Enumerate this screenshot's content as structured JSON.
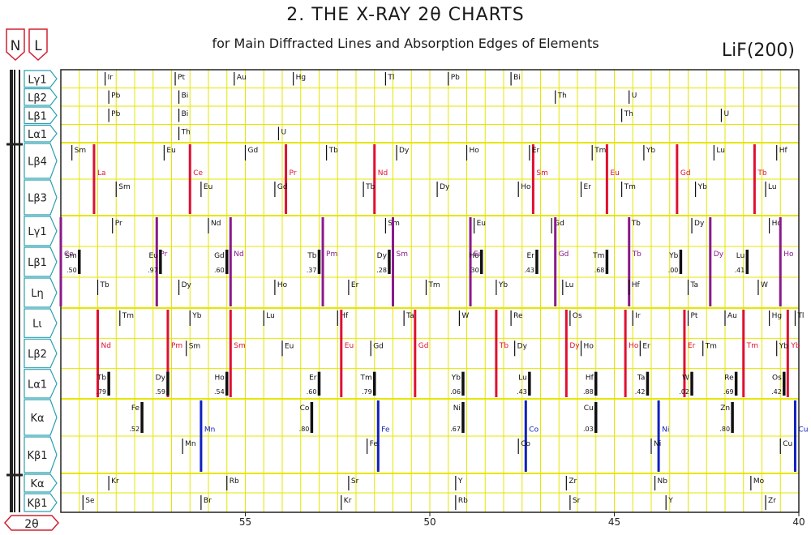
{
  "header": {
    "title": "2. THE X-RAY 2θ CHARTS",
    "subtitle": "for Main Diffracted Lines and Absorption Edges of Elements",
    "crystal": "LiF(200)",
    "badge_n": "N",
    "badge_l": "L",
    "axis_badge": "2θ"
  },
  "colors": {
    "grid": "#e6e600",
    "frame": "#222222",
    "label_border": "#2aa0b0",
    "badge": "#d12030",
    "red": "#e01030",
    "purple": "#8a1a8a",
    "blue": "#1020c0",
    "black": "#111111"
  },
  "chart_data": {
    "type": "table",
    "xlim": [
      60,
      40
    ],
    "xticks": [
      55,
      50,
      45,
      40
    ],
    "bands": [
      {
        "rows": [
          "Lγ1",
          "Lβ2",
          "Lβ1",
          "Lα1"
        ],
        "marks": [
          {
            "el": "Ir",
            "x": 58.8,
            "row": 0
          },
          {
            "el": "Pt",
            "x": 56.9,
            "row": 0
          },
          {
            "el": "Au",
            "x": 55.3,
            "row": 0
          },
          {
            "el": "Hg",
            "x": 53.7,
            "row": 0
          },
          {
            "el": "Tl",
            "x": 51.2,
            "row": 0
          },
          {
            "el": "Pb",
            "x": 49.5,
            "row": 0
          },
          {
            "el": "Bi",
            "x": 47.8,
            "row": 0
          },
          {
            "el": "Pb",
            "x": 58.7,
            "row": 1
          },
          {
            "el": "Bi",
            "x": 56.8,
            "row": 1
          },
          {
            "el": "Th",
            "x": 46.6,
            "row": 1
          },
          {
            "el": "U",
            "x": 44.6,
            "row": 1
          },
          {
            "el": "Pb",
            "x": 58.7,
            "row": 2
          },
          {
            "el": "Bi",
            "x": 56.8,
            "row": 2
          },
          {
            "el": "Th",
            "x": 44.8,
            "row": 2
          },
          {
            "el": "U",
            "x": 42.1,
            "row": 2
          },
          {
            "el": "Th",
            "x": 56.8,
            "row": 3
          },
          {
            "el": "U",
            "x": 54.1,
            "row": 3
          }
        ]
      },
      {
        "rows": [
          "Lβ4",
          "Lβ3"
        ],
        "marks": [
          {
            "el": "Sm",
            "x": 59.7,
            "row": 0
          },
          {
            "el": "La",
            "x": 59.1,
            "row": 0,
            "edge": "red"
          },
          {
            "el": "Eu",
            "x": 57.2,
            "row": 0
          },
          {
            "el": "Ce",
            "x": 56.5,
            "row": 0,
            "edge": "red"
          },
          {
            "el": "Gd",
            "x": 55.0,
            "row": 0
          },
          {
            "el": "Pr",
            "x": 53.9,
            "row": 0,
            "edge": "red"
          },
          {
            "el": "Tb",
            "x": 52.8,
            "row": 0
          },
          {
            "el": "Nd",
            "x": 51.5,
            "row": 0,
            "edge": "red"
          },
          {
            "el": "Dy",
            "x": 50.9,
            "row": 0
          },
          {
            "el": "Ho",
            "x": 49.0,
            "row": 0
          },
          {
            "el": "Sm",
            "x": 47.2,
            "row": 0,
            "edge": "red"
          },
          {
            "el": "Er",
            "x": 47.3,
            "row": 0
          },
          {
            "el": "Tm",
            "x": 45.6,
            "row": 0
          },
          {
            "el": "Eu",
            "x": 45.2,
            "row": 0,
            "edge": "red"
          },
          {
            "el": "Yb",
            "x": 44.2,
            "row": 0
          },
          {
            "el": "Gd",
            "x": 43.3,
            "row": 0,
            "edge": "red"
          },
          {
            "el": "Lu",
            "x": 42.3,
            "row": 0
          },
          {
            "el": "Tb",
            "x": 41.2,
            "row": 0,
            "edge": "red"
          },
          {
            "el": "Hf",
            "x": 40.6,
            "row": 0
          },
          {
            "el": "Sm",
            "x": 58.5,
            "row": 1
          },
          {
            "el": "Eu",
            "x": 56.2,
            "row": 1
          },
          {
            "el": "Gd",
            "x": 54.2,
            "row": 1
          },
          {
            "el": "Tb",
            "x": 51.8,
            "row": 1
          },
          {
            "el": "Dy",
            "x": 49.8,
            "row": 1
          },
          {
            "el": "Ho",
            "x": 47.6,
            "row": 1
          },
          {
            "el": "Er",
            "x": 45.9,
            "row": 1
          },
          {
            "el": "Tm",
            "x": 44.8,
            "row": 1
          },
          {
            "el": "Yb",
            "x": 42.8,
            "row": 1
          },
          {
            "el": "Lu",
            "x": 40.9,
            "row": 1
          }
        ]
      },
      {
        "rows": [
          "Lγ1",
          "Lβ1",
          "Lη"
        ],
        "marks": [
          {
            "el": "Ce",
            "x": 60.0,
            "row": 0,
            "edge": "purple"
          },
          {
            "el": "Pr",
            "x": 58.6,
            "row": 0
          },
          {
            "el": "Pr",
            "x": 57.4,
            "row": 0,
            "edge": "purple"
          },
          {
            "el": "Nd",
            "x": 56.0,
            "row": 0
          },
          {
            "el": "Nd",
            "x": 55.4,
            "row": 0,
            "edge": "purple"
          },
          {
            "el": "Pm",
            "x": 52.9,
            "row": 0,
            "edge": "purple"
          },
          {
            "el": "Sm",
            "x": 51.2,
            "row": 0
          },
          {
            "el": "Sm",
            "x": 51.0,
            "row": 0,
            "edge": "purple"
          },
          {
            "el": "Eu",
            "x": 48.8,
            "row": 0
          },
          {
            "el": "Eu",
            "x": 48.9,
            "row": 0,
            "edge": "purple"
          },
          {
            "el": "Gd",
            "x": 46.7,
            "row": 0
          },
          {
            "el": "Gd",
            "x": 46.6,
            "row": 0,
            "edge": "purple"
          },
          {
            "el": "Tb",
            "x": 44.6,
            "row": 0
          },
          {
            "el": "Tb",
            "x": 44.6,
            "row": 0,
            "edge": "purple"
          },
          {
            "el": "Dy",
            "x": 42.9,
            "row": 0
          },
          {
            "el": "Dy",
            "x": 42.4,
            "row": 0,
            "edge": "purple"
          },
          {
            "el": "Ho",
            "x": 40.8,
            "row": 0
          },
          {
            "el": "Ho",
            "x": 40.5,
            "row": 0,
            "edge": "purple"
          },
          {
            "el": "Sm",
            "x": 59.5,
            "row": 1,
            "val": ".50"
          },
          {
            "el": "Eu",
            "x": 57.3,
            "row": 1,
            "val": ".97"
          },
          {
            "el": "Gd",
            "x": 55.5,
            "row": 1,
            "val": ".60"
          },
          {
            "el": "Tb",
            "x": 53.0,
            "row": 1,
            "val": ".37"
          },
          {
            "el": "Dy",
            "x": 51.1,
            "row": 1,
            "val": ".28"
          },
          {
            "el": "Ho",
            "x": 48.6,
            "row": 1,
            "val": ".30"
          },
          {
            "el": "Er",
            "x": 47.1,
            "row": 1,
            "val": ".43"
          },
          {
            "el": "Tm",
            "x": 45.2,
            "row": 1,
            "val": ".68"
          },
          {
            "el": "Yb",
            "x": 43.2,
            "row": 1,
            "val": ".00"
          },
          {
            "el": "Lu",
            "x": 41.4,
            "row": 1,
            "val": ".41"
          },
          {
            "el": "Tb",
            "x": 59.0,
            "row": 2
          },
          {
            "el": "Dy",
            "x": 56.8,
            "row": 2
          },
          {
            "el": "Ho",
            "x": 54.2,
            "row": 2
          },
          {
            "el": "Er",
            "x": 52.2,
            "row": 2
          },
          {
            "el": "Tm",
            "x": 50.1,
            "row": 2
          },
          {
            "el": "Yb",
            "x": 48.2,
            "row": 2
          },
          {
            "el": "Lu",
            "x": 46.4,
            "row": 2
          },
          {
            "el": "Hf",
            "x": 44.6,
            "row": 2
          },
          {
            "el": "Ta",
            "x": 43.0,
            "row": 2
          },
          {
            "el": "W",
            "x": 41.1,
            "row": 2
          }
        ]
      },
      {
        "rows": [
          "Lι",
          "Lβ2",
          "Lα1"
        ],
        "marks": [
          {
            "el": "Tm",
            "x": 58.4,
            "row": 0
          },
          {
            "el": "Yb",
            "x": 56.5,
            "row": 0
          },
          {
            "el": "Lu",
            "x": 54.5,
            "row": 0
          },
          {
            "el": "Hf",
            "x": 52.5,
            "row": 0
          },
          {
            "el": "Ta",
            "x": 50.7,
            "row": 0
          },
          {
            "el": "W",
            "x": 49.2,
            "row": 0
          },
          {
            "el": "Re",
            "x": 47.8,
            "row": 0
          },
          {
            "el": "Os",
            "x": 46.2,
            "row": 0
          },
          {
            "el": "Ir",
            "x": 44.5,
            "row": 0
          },
          {
            "el": "Pt",
            "x": 43.0,
            "row": 0
          },
          {
            "el": "Au",
            "x": 42.0,
            "row": 0
          },
          {
            "el": "Hg",
            "x": 40.8,
            "row": 0
          },
          {
            "el": "Tl",
            "x": 40.1,
            "row": 0
          },
          {
            "el": "Nd",
            "x": 59.0,
            "row": 1,
            "edge": "red"
          },
          {
            "el": "Pm",
            "x": 57.1,
            "row": 1,
            "edge": "red"
          },
          {
            "el": "Sm",
            "x": 55.4,
            "row": 1,
            "edge": "red"
          },
          {
            "el": "Eu",
            "x": 52.4,
            "row": 1,
            "edge": "red"
          },
          {
            "el": "Gd",
            "x": 50.4,
            "row": 1,
            "edge": "red"
          },
          {
            "el": "Tb",
            "x": 48.2,
            "row": 1,
            "edge": "red"
          },
          {
            "el": "Dy",
            "x": 46.3,
            "row": 1,
            "edge": "red"
          },
          {
            "el": "Ho",
            "x": 44.7,
            "row": 1,
            "edge": "red"
          },
          {
            "el": "Er",
            "x": 43.1,
            "row": 1,
            "edge": "red"
          },
          {
            "el": "Tm",
            "x": 41.5,
            "row": 1,
            "edge": "red"
          },
          {
            "el": "Yb",
            "x": 40.3,
            "row": 1,
            "edge": "red"
          },
          {
            "el": "Sm",
            "x": 56.6,
            "row": 1
          },
          {
            "el": "Eu",
            "x": 54.0,
            "row": 1
          },
          {
            "el": "Gd",
            "x": 51.6,
            "row": 1
          },
          {
            "el": "Dy",
            "x": 47.7,
            "row": 1
          },
          {
            "el": "Ho",
            "x": 45.9,
            "row": 1
          },
          {
            "el": "Er",
            "x": 44.3,
            "row": 1
          },
          {
            "el": "Tm",
            "x": 42.6,
            "row": 1
          },
          {
            "el": "Yb",
            "x": 40.6,
            "row": 1
          },
          {
            "el": "Tb",
            "x": 58.7,
            "row": 2,
            "val": ".79"
          },
          {
            "el": "Dy",
            "x": 57.1,
            "row": 2,
            "val": ".59"
          },
          {
            "el": "Ho",
            "x": 55.5,
            "row": 2,
            "val": ".54"
          },
          {
            "el": "Er",
            "x": 53.0,
            "row": 2,
            "val": ".60"
          },
          {
            "el": "Tm",
            "x": 51.5,
            "row": 2,
            "val": ".79"
          },
          {
            "el": "Yb",
            "x": 49.1,
            "row": 2,
            "val": ".06"
          },
          {
            "el": "Lu",
            "x": 47.3,
            "row": 2,
            "val": ".43"
          },
          {
            "el": "Hf",
            "x": 45.5,
            "row": 2,
            "val": ".88"
          },
          {
            "el": "Ta",
            "x": 44.1,
            "row": 2,
            "val": ".42"
          },
          {
            "el": "W",
            "x": 42.9,
            "row": 2,
            "val": ".02"
          },
          {
            "el": "Re",
            "x": 41.7,
            "row": 2,
            "val": ".69"
          },
          {
            "el": "Os",
            "x": 40.4,
            "row": 2,
            "val": ".42"
          }
        ]
      },
      {
        "rows": [
          "Kα",
          "Kβ1"
        ],
        "marks": [
          {
            "el": "Fe",
            "x": 57.8,
            "row": 0,
            "val": ".52"
          },
          {
            "el": "Mn",
            "x": 56.2,
            "row": 0,
            "edge": "blue"
          },
          {
            "el": "Co",
            "x": 53.2,
            "row": 0,
            "val": ".80"
          },
          {
            "el": "Fe",
            "x": 51.4,
            "row": 0,
            "edge": "blue"
          },
          {
            "el": "Ni",
            "x": 49.1,
            "row": 0,
            "val": ".67"
          },
          {
            "el": "Co",
            "x": 47.4,
            "row": 0,
            "edge": "blue"
          },
          {
            "el": "Cu",
            "x": 45.5,
            "row": 0,
            "val": ".03"
          },
          {
            "el": "Ni",
            "x": 43.8,
            "row": 0,
            "edge": "blue"
          },
          {
            "el": "Zn",
            "x": 41.8,
            "row": 0,
            "val": ".80"
          },
          {
            "el": "Cu",
            "x": 40.1,
            "row": 0,
            "edge": "blue"
          },
          {
            "el": "Mn",
            "x": 56.7,
            "row": 1
          },
          {
            "el": "Fe",
            "x": 51.7,
            "row": 1
          },
          {
            "el": "Co",
            "x": 47.6,
            "row": 1
          },
          {
            "el": "Ni",
            "x": 44.0,
            "row": 1
          },
          {
            "el": "Cu",
            "x": 40.5,
            "row": 1
          }
        ]
      },
      {
        "rows": [
          "Kα",
          "Kβ1"
        ],
        "marks": [
          {
            "el": "Kr",
            "x": 58.7,
            "row": 0
          },
          {
            "el": "Rb",
            "x": 55.5,
            "row": 0
          },
          {
            "el": "Sr",
            "x": 52.2,
            "row": 0
          },
          {
            "el": "Y",
            "x": 49.3,
            "row": 0
          },
          {
            "el": "Zr",
            "x": 46.3,
            "row": 0
          },
          {
            "el": "Nb",
            "x": 43.9,
            "row": 0
          },
          {
            "el": "Mo",
            "x": 41.3,
            "row": 0
          },
          {
            "el": "Se",
            "x": 59.4,
            "row": 1
          },
          {
            "el": "Br",
            "x": 56.2,
            "row": 1
          },
          {
            "el": "Kr",
            "x": 52.4,
            "row": 1
          },
          {
            "el": "Rb",
            "x": 49.3,
            "row": 1
          },
          {
            "el": "Sr",
            "x": 46.2,
            "row": 1
          },
          {
            "el": "Y",
            "x": 43.6,
            "row": 1
          },
          {
            "el": "Zr",
            "x": 40.9,
            "row": 1
          }
        ]
      }
    ]
  }
}
